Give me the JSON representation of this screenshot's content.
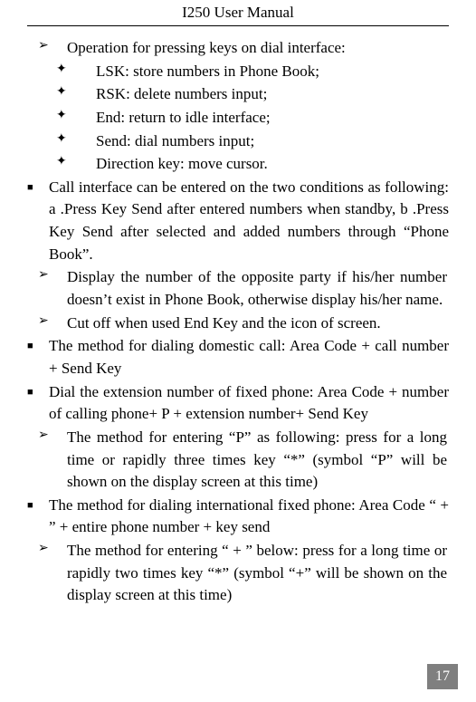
{
  "header": {
    "title": "I250 User Manual"
  },
  "content": {
    "l1": "Operation for pressing keys on dial interface:",
    "d1": "LSK: store numbers in Phone Book;",
    "d2": "RSK: delete numbers input;",
    "d3": "End: return to idle interface;",
    "d4": "Send: dial numbers input;",
    "d5": "Direction key: move cursor.",
    "s1": "Call interface can be entered on the two conditions as following: a .Press Key Send after entered numbers when standby, b .Press Key Send after selected and added numbers through “Phone Book”.",
    "a1": "Display the number of the opposite party if his/her number doesn’t exist in Phone Book, otherwise display his/her name.",
    "a2": "Cut off when used End Key and the icon of screen.",
    "s2": "The method for dialing domestic call: Area Code + call number + Send Key",
    "s3": "Dial the extension number of fixed phone: Area Code + number of calling phone+ P + extension number+ Send Key",
    "a3": "The method for entering “P” as following: press for a long time or rapidly three times key “*” (symbol “P” will be shown on the display screen at this time)",
    "s4": "The method for dialing international fixed phone: Area Code “ + ” + entire phone number + key send",
    "a4": "The method for entering “ + ” below: press for a long time or rapidly two times key “*” (symbol “+” will be shown on the display screen at this time)"
  },
  "symbols": {
    "arrow": "➢",
    "diamond": "✦",
    "square": "■"
  },
  "page_number": "17",
  "colors": {
    "text": "#000000",
    "background": "#ffffff",
    "pagenum_bg": "#7f7f7f",
    "pagenum_fg": "#ffffff"
  }
}
